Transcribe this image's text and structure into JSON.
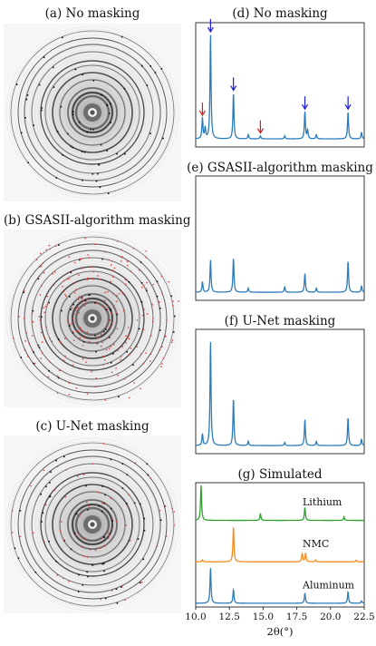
{
  "colors": {
    "blue": "#2b7bba",
    "orange": "#f58a1f",
    "green": "#2ca02c",
    "arrow_blue": "#1a1ad6",
    "arrow_red": "#d61a1a",
    "mask_red": "#e23b3b"
  },
  "detector_panels": [
    {
      "title": "(a) No masking",
      "mask_overlay": false
    },
    {
      "title": "(b) GSASII-algorithm masking",
      "mask_overlay": true
    },
    {
      "title": "(c) U-Net masking",
      "mask_overlay": true
    }
  ],
  "chart_data": [
    {
      "type": "line",
      "title": "(d) No masking",
      "xlim": [
        10.0,
        22.5
      ],
      "peaks": [
        {
          "x": 10.5,
          "y": 0.2
        },
        {
          "x": 10.7,
          "y": 0.1
        },
        {
          "x": 11.1,
          "y": 1.0
        },
        {
          "x": 12.8,
          "y": 0.44
        },
        {
          "x": 13.9,
          "y": 0.04
        },
        {
          "x": 14.8,
          "y": 0.03
        },
        {
          "x": 16.6,
          "y": 0.03
        },
        {
          "x": 18.1,
          "y": 0.26
        },
        {
          "x": 18.3,
          "y": 0.08
        },
        {
          "x": 18.95,
          "y": 0.04
        },
        {
          "x": 21.3,
          "y": 0.26
        },
        {
          "x": 22.3,
          "y": 0.06
        }
      ],
      "arrows": [
        {
          "x": 10.5,
          "color": "red"
        },
        {
          "x": 11.1,
          "color": "blue"
        },
        {
          "x": 12.8,
          "color": "blue"
        },
        {
          "x": 14.8,
          "color": "red"
        },
        {
          "x": 18.1,
          "color": "blue"
        },
        {
          "x": 21.3,
          "color": "blue"
        }
      ]
    },
    {
      "type": "line",
      "title": "(e) GSASII-algorithm masking",
      "xlim": [
        10.0,
        22.5
      ],
      "peaks": [
        {
          "x": 10.5,
          "y": 0.1
        },
        {
          "x": 11.1,
          "y": 0.31
        },
        {
          "x": 12.8,
          "y": 0.33
        },
        {
          "x": 13.9,
          "y": 0.04
        },
        {
          "x": 16.6,
          "y": 0.05
        },
        {
          "x": 18.1,
          "y": 0.18
        },
        {
          "x": 18.95,
          "y": 0.04
        },
        {
          "x": 21.3,
          "y": 0.3
        },
        {
          "x": 22.3,
          "y": 0.06
        }
      ]
    },
    {
      "type": "line",
      "title": "(f) U-Net masking",
      "xlim": [
        10.0,
        22.5
      ],
      "peaks": [
        {
          "x": 10.5,
          "y": 0.11
        },
        {
          "x": 11.1,
          "y": 1.0
        },
        {
          "x": 12.8,
          "y": 0.45
        },
        {
          "x": 13.9,
          "y": 0.04
        },
        {
          "x": 16.6,
          "y": 0.03
        },
        {
          "x": 18.1,
          "y": 0.25
        },
        {
          "x": 18.95,
          "y": 0.04
        },
        {
          "x": 21.3,
          "y": 0.27
        },
        {
          "x": 22.3,
          "y": 0.06
        }
      ]
    },
    {
      "type": "line",
      "title": "(g) Simulated",
      "xlim": [
        10.0,
        22.5
      ],
      "xticks": [
        10.0,
        12.5,
        15.0,
        17.5,
        20.0,
        22.5
      ],
      "xtick_labels": [
        "10.0",
        "12.5",
        "15.0",
        "17.5",
        "20.0",
        "22.5"
      ],
      "xlabel": "2θ(°)",
      "series": [
        {
          "name": "Lithium",
          "color": "green",
          "offset": 2,
          "peaks": [
            {
              "x": 10.4,
              "y": 0.9
            },
            {
              "x": 14.8,
              "y": 0.17
            },
            {
              "x": 18.1,
              "y": 0.33
            },
            {
              "x": 21.0,
              "y": 0.09
            }
          ]
        },
        {
          "name": "NMC",
          "color": "orange",
          "offset": 1,
          "peaks": [
            {
              "x": 10.5,
              "y": 0.05
            },
            {
              "x": 12.8,
              "y": 0.9
            },
            {
              "x": 17.9,
              "y": 0.22
            },
            {
              "x": 18.15,
              "y": 0.22
            },
            {
              "x": 18.9,
              "y": 0.05
            },
            {
              "x": 21.9,
              "y": 0.04
            }
          ]
        },
        {
          "name": "Aluminum",
          "color": "blue",
          "offset": 0,
          "peaks": [
            {
              "x": 11.1,
              "y": 0.9
            },
            {
              "x": 12.8,
              "y": 0.35
            },
            {
              "x": 18.1,
              "y": 0.26
            },
            {
              "x": 21.3,
              "y": 0.29
            },
            {
              "x": 22.3,
              "y": 0.06
            }
          ]
        }
      ]
    }
  ]
}
